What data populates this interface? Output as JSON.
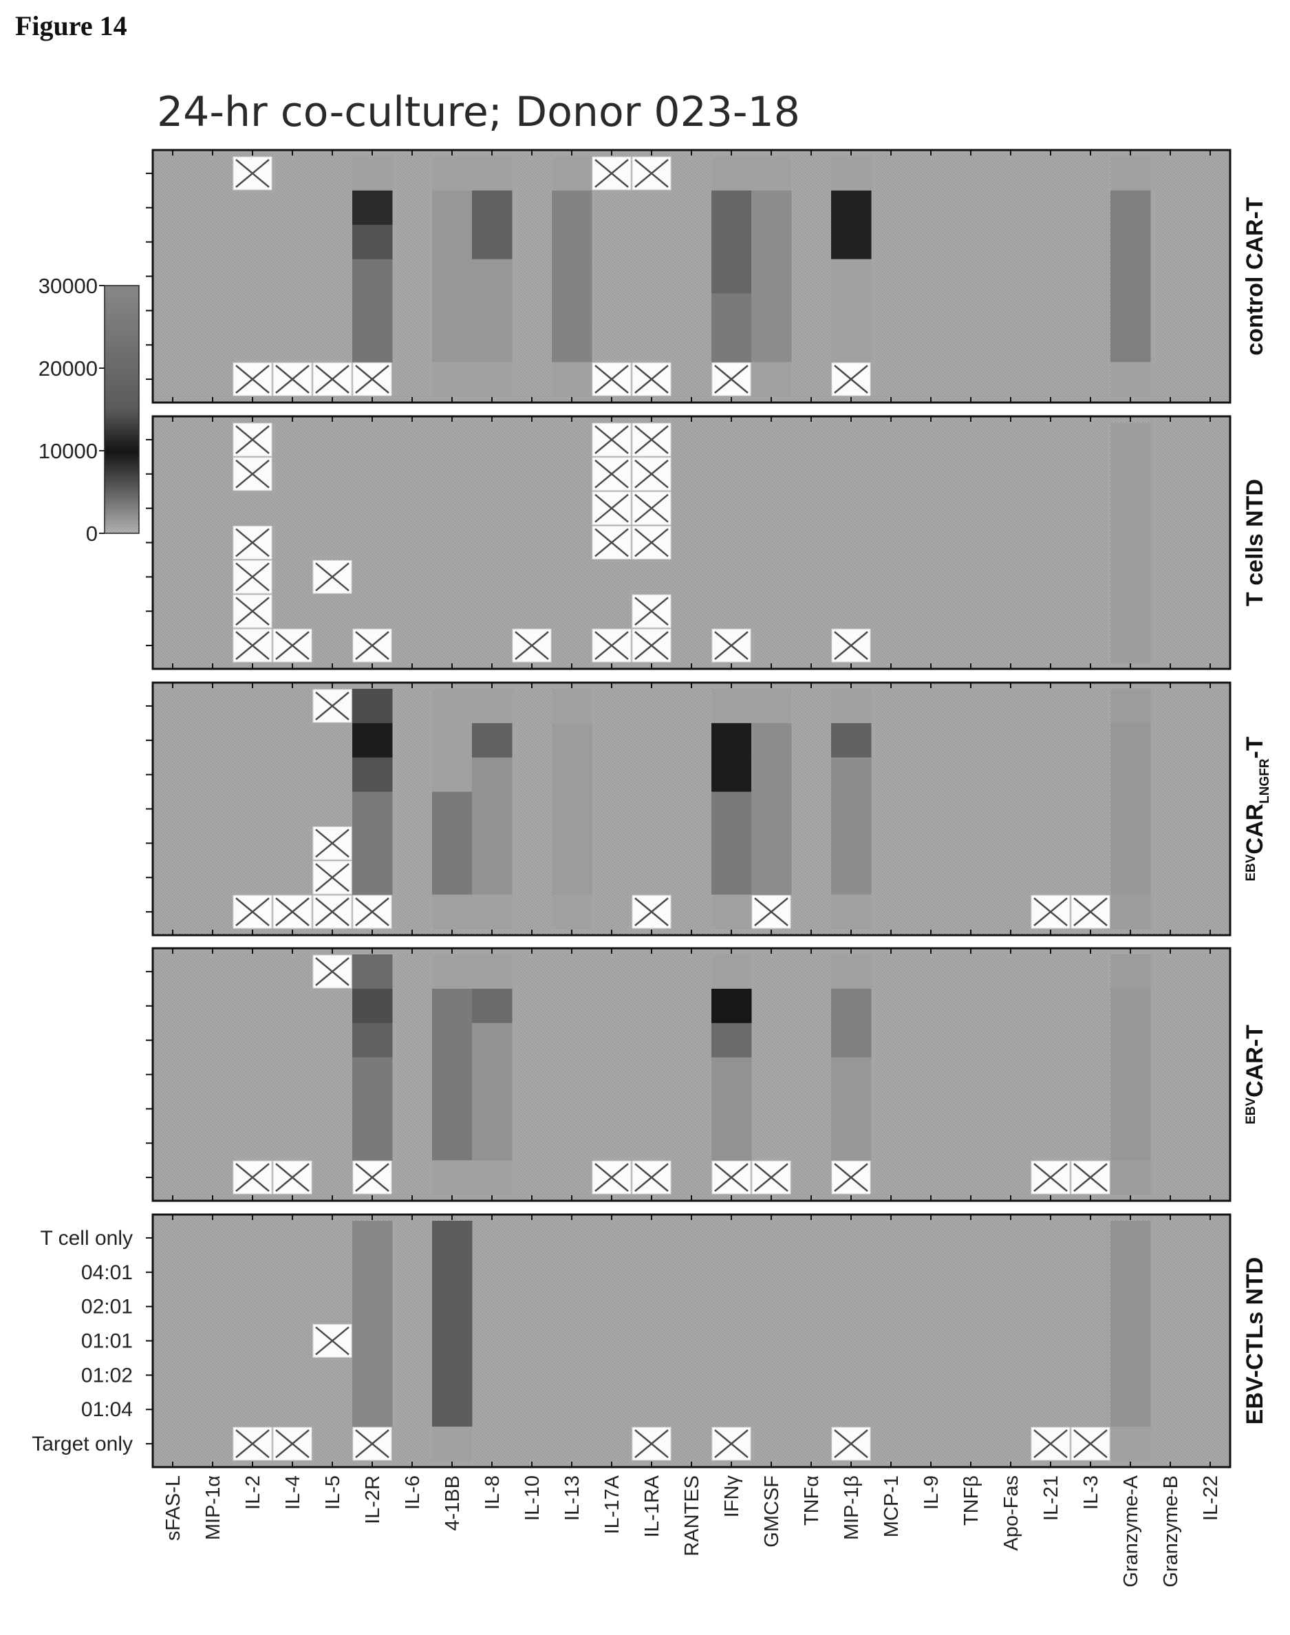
{
  "figure_label": "Figure 14",
  "chart_data": {
    "type": "heatmap",
    "title": "24-hr co-culture; Donor 023-18",
    "color_scale": {
      "min": 0,
      "max": 30000,
      "ticks": [
        30000,
        20000,
        10000,
        0
      ]
    },
    "columns": [
      "sFAS-L",
      "MIP-1α",
      "IL-2",
      "IL-4",
      "IL-5",
      "IL-2R",
      "IL-6",
      "4-1BB",
      "IL-8",
      "IL-10",
      "IL-13",
      "IL-17A",
      "IL-1RA",
      "RANTES",
      "IFNγ",
      "GMCSF",
      "TNFα",
      "MIP-1β",
      "MCP-1",
      "IL-9",
      "TNFβ",
      "Apo-Fas",
      "IL-21",
      "IL-3",
      "Granzyme-A",
      "Granzyme-B",
      "IL-22"
    ],
    "rows": [
      "T cell only",
      "04:01",
      "02:01",
      "01:01",
      "01:02",
      "01:04",
      "Target only"
    ],
    "missing_marker": "X",
    "panels": [
      {
        "label": "control CAR-T",
        "label_parts": [
          [
            "control CAR-T",
            ""
          ]
        ],
        "columns_data": {
          "IL-2R": [
            1000,
            25000,
            17000,
            10000,
            10000,
            10000,
            null
          ],
          "4-1BB": [
            1000,
            3000,
            3000,
            3000,
            3000,
            3000,
            1000
          ],
          "IL-8": [
            1000,
            14000,
            14000,
            3000,
            3000,
            3000,
            1000
          ],
          "IL-13": [
            1000,
            7000,
            7000,
            7000,
            7000,
            7000,
            1000
          ],
          "IFNγ": [
            1000,
            13000,
            13000,
            13000,
            9000,
            9000,
            null
          ],
          "GMCSF": [
            1000,
            5000,
            5000,
            5000,
            5000,
            5000,
            1000
          ],
          "MIP-1β": [
            1000,
            27000,
            27000,
            1000,
            1000,
            1000,
            null
          ],
          "Granzyme-A": [
            1000,
            8000,
            8000,
            8000,
            8000,
            8000,
            1000
          ]
        },
        "missing": {
          "IL-2": [
            0,
            6
          ],
          "IL-4": [
            6
          ],
          "IL-5": [
            6
          ],
          "IL-2R": [
            6
          ],
          "IL-17A": [
            0,
            6
          ],
          "IL-1RA": [
            0,
            6
          ],
          "IFNγ": [
            6
          ],
          "MIP-1β": [
            6
          ]
        }
      },
      {
        "label": "T cells NTD",
        "label_parts": [
          [
            "T cells NTD",
            ""
          ]
        ],
        "columns_data": {
          "Granzyme-A": [
            2000,
            2000,
            2000,
            2000,
            2000,
            2000,
            2000
          ]
        },
        "missing": {
          "IL-2": [
            0,
            1,
            3,
            4,
            5,
            6
          ],
          "IL-4": [
            6
          ],
          "IL-5": [
            4
          ],
          "IL-2R": [
            6
          ],
          "IL-10": [
            6
          ],
          "IL-17A": [
            0,
            1,
            2,
            3,
            6
          ],
          "IL-1RA": [
            0,
            1,
            2,
            3,
            5,
            6
          ],
          "IFNγ": [
            6
          ],
          "MIP-1β": [
            6
          ]
        }
      },
      {
        "label": "EBVCARLNGFR-T",
        "label_parts": [
          [
            "EBV",
            "sup"
          ],
          [
            "CAR",
            ""
          ],
          [
            "LNGFR",
            "sub"
          ],
          [
            "-T",
            ""
          ]
        ],
        "columns_data": {
          "IL-2R": [
            18000,
            28000,
            17000,
            9000,
            9000,
            9000,
            null
          ],
          "4-1BB": [
            1000,
            1000,
            1000,
            9000,
            9000,
            9000,
            1000
          ],
          "IL-8": [
            1000,
            14000,
            4000,
            4000,
            4000,
            4000,
            1000
          ],
          "IL-13": [
            1000,
            2000,
            2000,
            2000,
            2000,
            2000,
            1000
          ],
          "IFNγ": [
            1000,
            28000,
            28000,
            9000,
            9000,
            9000,
            1000
          ],
          "GMCSF": [
            1000,
            5000,
            5000,
            5000,
            5000,
            5000,
            null
          ],
          "MIP-1β": [
            1000,
            14000,
            5000,
            5000,
            5000,
            5000,
            1000
          ],
          "Granzyme-A": [
            2000,
            3000,
            3000,
            3000,
            3000,
            3000,
            2000
          ]
        },
        "missing": {
          "IL-5": [
            0,
            4,
            5,
            6
          ],
          "IL-2": [
            6
          ],
          "IL-4": [
            6
          ],
          "IL-2R": [
            6
          ],
          "IL-1RA": [
            6
          ],
          "GMCSF": [
            6
          ],
          "IL-21": [
            6
          ],
          "IL-3": [
            6
          ]
        }
      },
      {
        "label": "EBVCAR-T",
        "label_parts": [
          [
            "EBV",
            "sup"
          ],
          [
            "CAR-T",
            ""
          ]
        ],
        "columns_data": {
          "IL-2R": [
            12000,
            18000,
            14000,
            9000,
            9000,
            9000,
            null
          ],
          "4-1BB": [
            1000,
            9000,
            9000,
            9000,
            9000,
            9000,
            1000
          ],
          "IL-8": [
            1000,
            12000,
            4000,
            4000,
            4000,
            4000,
            1000
          ],
          "IFNγ": [
            1000,
            29000,
            12000,
            4000,
            4000,
            4000,
            null
          ],
          "MIP-1β": [
            1000,
            8000,
            8000,
            3000,
            3000,
            3000,
            null
          ],
          "Granzyme-A": [
            2000,
            3000,
            3000,
            3000,
            3000,
            3000,
            2000
          ]
        },
        "missing": {
          "IL-5": [
            0
          ],
          "IL-2": [
            6
          ],
          "IL-4": [
            6
          ],
          "IL-2R": [
            6
          ],
          "IL-17A": [
            6
          ],
          "IL-1RA": [
            6
          ],
          "IFNγ": [
            6
          ],
          "GMCSF": [
            6
          ],
          "MIP-1β": [
            6
          ],
          "IL-21": [
            6
          ],
          "IL-3": [
            6
          ]
        }
      },
      {
        "label": "EBV-CTLs NTD",
        "label_parts": [
          [
            "EBV-CTLs NTD",
            ""
          ]
        ],
        "columns_data": {
          "IL-2R": [
            6000,
            6000,
            6000,
            6000,
            6000,
            6000,
            null
          ],
          "4-1BB": [
            15000,
            15000,
            15000,
            15000,
            15000,
            15000,
            1000
          ],
          "Granzyme-A": [
            4000,
            4000,
            4000,
            4000,
            4000,
            4000,
            1000
          ]
        },
        "missing": {
          "IL-5": [
            3
          ],
          "IL-2": [
            6
          ],
          "IL-4": [
            6
          ],
          "IL-2R": [
            6
          ],
          "IL-1RA": [
            6
          ],
          "IFNγ": [
            6
          ],
          "MIP-1β": [
            6
          ],
          "IL-21": [
            6
          ],
          "IL-3": [
            6
          ]
        }
      }
    ]
  }
}
